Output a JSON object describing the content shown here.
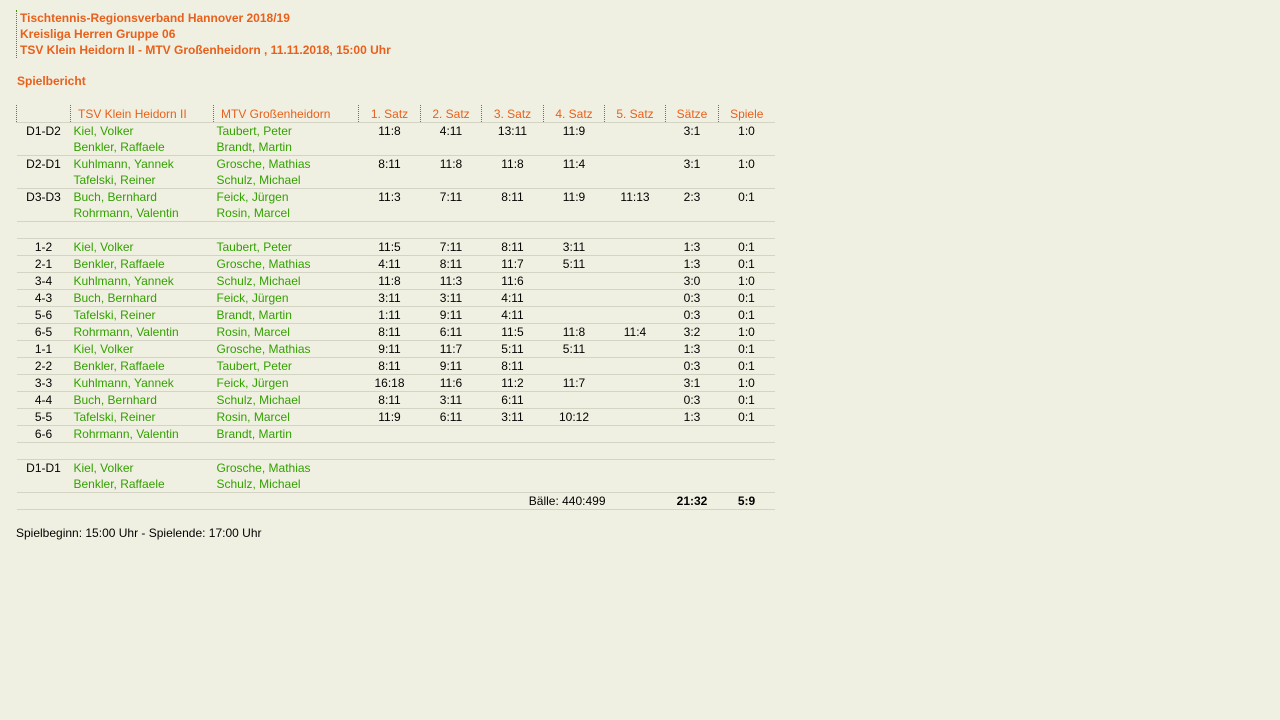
{
  "header": {
    "line1": "Tischtennis-Regionsverband Hannover 2018/19",
    "line2": "Kreisliga Herren Gruppe 06",
    "line3": "TSV Klein Heidorn II - MTV Großenheidorn , 11.11.2018, 15:00 Uhr"
  },
  "section_title": "Spielbericht",
  "colors": {
    "accent": "#e8601c",
    "names": "#33a000",
    "background": "#f0f0e2"
  },
  "columns": [
    "",
    "TSV Klein Heidorn II",
    "MTV Großenheidorn",
    "1. Satz",
    "2. Satz",
    "3. Satz",
    "4. Satz",
    "5. Satz",
    "Sätze",
    "Spiele"
  ],
  "rows": [
    {
      "pair": "D1-D2",
      "home": [
        "Kiel, Volker",
        "Benkler, Raffaele"
      ],
      "away": [
        "Taubert, Peter",
        "Brandt, Martin"
      ],
      "sets": [
        "11:8",
        "4:11",
        "13:11",
        "11:9",
        ""
      ],
      "saetze": "3:1",
      "spiele": "1:0"
    },
    {
      "pair": "D2-D1",
      "home": [
        "Kuhlmann, Yannek",
        "Tafelski, Reiner"
      ],
      "away": [
        "Grosche, Mathias",
        "Schulz, Michael"
      ],
      "sets": [
        "8:11",
        "11:8",
        "11:8",
        "11:4",
        ""
      ],
      "saetze": "3:1",
      "spiele": "1:0"
    },
    {
      "pair": "D3-D3",
      "home": [
        "Buch, Bernhard",
        "Rohrmann, Valentin"
      ],
      "away": [
        "Feick, Jürgen",
        "Rosin, Marcel"
      ],
      "sets": [
        "11:3",
        "7:11",
        "8:11",
        "11:9",
        "11:13"
      ],
      "saetze": "2:3",
      "spiele": "0:1"
    },
    {
      "blank": true
    },
    {
      "pair": "1-2",
      "home": [
        "Kiel, Volker"
      ],
      "away": [
        "Taubert, Peter"
      ],
      "sets": [
        "11:5",
        "7:11",
        "8:11",
        "3:11",
        ""
      ],
      "saetze": "1:3",
      "spiele": "0:1"
    },
    {
      "pair": "2-1",
      "home": [
        "Benkler, Raffaele"
      ],
      "away": [
        "Grosche, Mathias"
      ],
      "sets": [
        "4:11",
        "8:11",
        "11:7",
        "5:11",
        ""
      ],
      "saetze": "1:3",
      "spiele": "0:1"
    },
    {
      "pair": "3-4",
      "home": [
        "Kuhlmann, Yannek"
      ],
      "away": [
        "Schulz, Michael"
      ],
      "sets": [
        "11:8",
        "11:3",
        "11:6",
        "",
        ""
      ],
      "saetze": "3:0",
      "spiele": "1:0"
    },
    {
      "pair": "4-3",
      "home": [
        "Buch, Bernhard"
      ],
      "away": [
        "Feick, Jürgen"
      ],
      "sets": [
        "3:11",
        "3:11",
        "4:11",
        "",
        ""
      ],
      "saetze": "0:3",
      "spiele": "0:1"
    },
    {
      "pair": "5-6",
      "home": [
        "Tafelski, Reiner"
      ],
      "away": [
        "Brandt, Martin"
      ],
      "sets": [
        "1:11",
        "9:11",
        "4:11",
        "",
        ""
      ],
      "saetze": "0:3",
      "spiele": "0:1"
    },
    {
      "pair": "6-5",
      "home": [
        "Rohrmann, Valentin"
      ],
      "away": [
        "Rosin, Marcel"
      ],
      "sets": [
        "8:11",
        "6:11",
        "11:5",
        "11:8",
        "11:4"
      ],
      "saetze": "3:2",
      "spiele": "1:0"
    },
    {
      "pair": "1-1",
      "home": [
        "Kiel, Volker"
      ],
      "away": [
        "Grosche, Mathias"
      ],
      "sets": [
        "9:11",
        "11:7",
        "5:11",
        "5:11",
        ""
      ],
      "saetze": "1:3",
      "spiele": "0:1"
    },
    {
      "pair": "2-2",
      "home": [
        "Benkler, Raffaele"
      ],
      "away": [
        "Taubert, Peter"
      ],
      "sets": [
        "8:11",
        "9:11",
        "8:11",
        "",
        ""
      ],
      "saetze": "0:3",
      "spiele": "0:1"
    },
    {
      "pair": "3-3",
      "home": [
        "Kuhlmann, Yannek"
      ],
      "away": [
        "Feick, Jürgen"
      ],
      "sets": [
        "16:18",
        "11:6",
        "11:2",
        "11:7",
        ""
      ],
      "saetze": "3:1",
      "spiele": "1:0"
    },
    {
      "pair": "4-4",
      "home": [
        "Buch, Bernhard"
      ],
      "away": [
        "Schulz, Michael"
      ],
      "sets": [
        "8:11",
        "3:11",
        "6:11",
        "",
        ""
      ],
      "saetze": "0:3",
      "spiele": "0:1"
    },
    {
      "pair": "5-5",
      "home": [
        "Tafelski, Reiner"
      ],
      "away": [
        "Rosin, Marcel"
      ],
      "sets": [
        "11:9",
        "6:11",
        "3:11",
        "10:12",
        ""
      ],
      "saetze": "1:3",
      "spiele": "0:1"
    },
    {
      "pair": "6-6",
      "home": [
        "Rohrmann, Valentin"
      ],
      "away": [
        "Brandt, Martin"
      ],
      "sets": [
        "",
        "",
        "",
        "",
        ""
      ],
      "saetze": "",
      "spiele": ""
    },
    {
      "blank": true
    },
    {
      "pair": "D1-D1",
      "home": [
        "Kiel, Volker",
        "Benkler, Raffaele"
      ],
      "away": [
        "Grosche, Mathias",
        "Schulz, Michael"
      ],
      "sets": [
        "",
        "",
        "",
        "",
        ""
      ],
      "saetze": "",
      "spiele": ""
    }
  ],
  "totals": {
    "baelle": "Bälle: 440:499",
    "saetze": "21:32",
    "spiele": "5:9"
  },
  "footer": "Spielbeginn: 15:00 Uhr - Spielende: 17:00 Uhr"
}
